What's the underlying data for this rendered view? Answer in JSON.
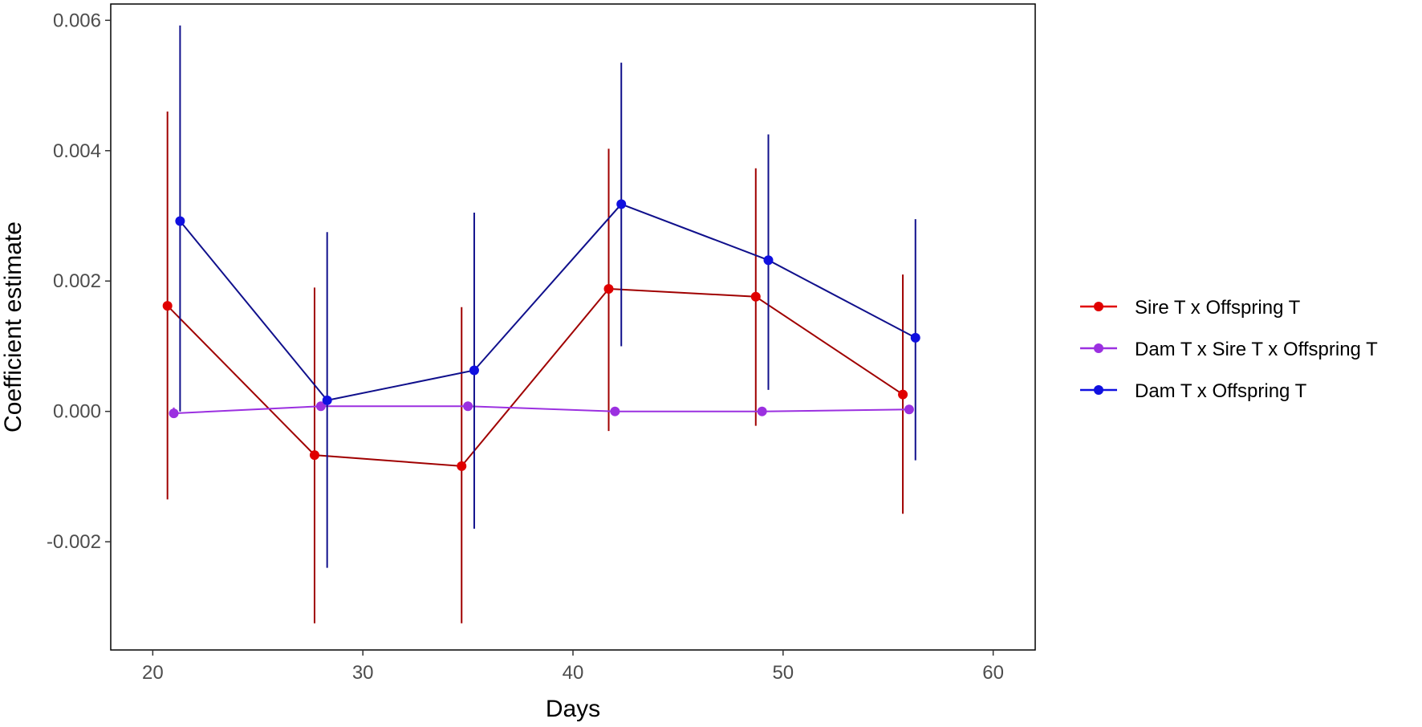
{
  "chart_data": {
    "type": "line",
    "title": "",
    "xlabel": "Days",
    "ylabel": "Coefficient estimate",
    "xlim": [
      18,
      62
    ],
    "ylim": [
      -0.00366,
      0.00625
    ],
    "x_ticks": [
      20,
      30,
      40,
      50,
      60
    ],
    "x_tick_labels": [
      "20",
      "30",
      "40",
      "50",
      "60"
    ],
    "y_ticks": [
      -0.002,
      0.0,
      0.002,
      0.004,
      0.006
    ],
    "y_tick_labels": [
      "-0.002",
      "0.000",
      "0.002",
      "0.004",
      "0.006"
    ],
    "grid": false,
    "legend_position": "right",
    "series": [
      {
        "name": "Sire T x Offspring T",
        "color": "#e00000",
        "line_color": "#a00000",
        "points": [
          {
            "x": 20.7,
            "y": 0.00162,
            "lo": -0.00135,
            "hi": 0.0046
          },
          {
            "x": 27.7,
            "y": -0.00067,
            "lo": -0.00325,
            "hi": 0.0019
          },
          {
            "x": 34.7,
            "y": -0.00084,
            "lo": -0.00325,
            "hi": 0.0016
          },
          {
            "x": 41.7,
            "y": 0.00188,
            "lo": -0.0003,
            "hi": 0.00403
          },
          {
            "x": 48.7,
            "y": 0.00176,
            "lo": -0.00022,
            "hi": 0.00373
          },
          {
            "x": 55.7,
            "y": 0.00026,
            "lo": -0.00157,
            "hi": 0.0021
          }
        ]
      },
      {
        "name": "Dam T x Sire T x Offspring T",
        "color": "#9b30e0",
        "line_color": "#9b30e0",
        "points": [
          {
            "x": 21.0,
            "y": -3e-05,
            "lo": -8e-05,
            "hi": 6e-05
          },
          {
            "x": 28.0,
            "y": 8e-05,
            "lo": 3e-05,
            "hi": 0.00013
          },
          {
            "x": 35.0,
            "y": 8e-05,
            "lo": 3e-05,
            "hi": 0.00013
          },
          {
            "x": 42.0,
            "y": 0.0,
            "lo": -4e-05,
            "hi": 4e-05
          },
          {
            "x": 49.0,
            "y": 0.0,
            "lo": -4e-05,
            "hi": 4e-05
          },
          {
            "x": 56.0,
            "y": 3e-05,
            "lo": -1e-05,
            "hi": 7e-05
          }
        ]
      },
      {
        "name": "Dam T x Offspring T",
        "color": "#1010e0",
        "line_color": "#10108c",
        "points": [
          {
            "x": 21.3,
            "y": 0.00292,
            "lo": 0.0,
            "hi": 0.00592
          },
          {
            "x": 28.3,
            "y": 0.00017,
            "lo": -0.0024,
            "hi": 0.00275
          },
          {
            "x": 35.3,
            "y": 0.00063,
            "lo": -0.0018,
            "hi": 0.00305
          },
          {
            "x": 42.3,
            "y": 0.00318,
            "lo": 0.001,
            "hi": 0.00535
          },
          {
            "x": 49.3,
            "y": 0.00232,
            "lo": 0.00033,
            "hi": 0.00425
          },
          {
            "x": 56.3,
            "y": 0.00113,
            "lo": -0.00075,
            "hi": 0.00295
          }
        ]
      }
    ]
  }
}
